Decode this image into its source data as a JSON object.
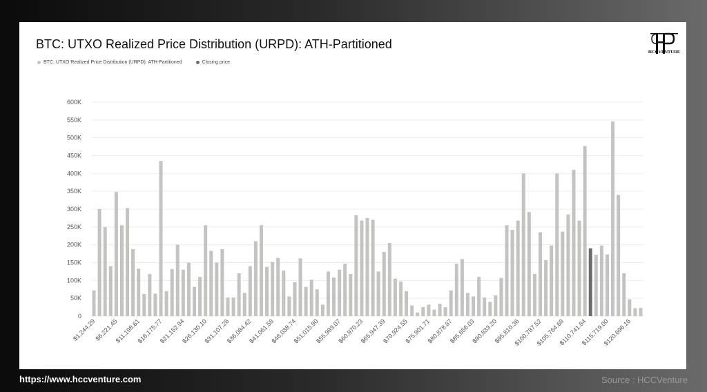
{
  "footer": {
    "url": "https://www.hccventure.com",
    "source": "Source : HCCVenture"
  },
  "logo": {
    "text": "HCCVENTURE"
  },
  "colors": {
    "bar": "#c3c3c1",
    "closing": "#6c6c6c",
    "grid": "#ececec",
    "axis_text": "#555555"
  },
  "chart_data": {
    "type": "bar",
    "title": "BTC: UTXO Realized Price Distribution (URPD): ATH-Partitioned",
    "legend": [
      {
        "name": "BTC: UTXO Realized Price Distribution (URPD): ATH-Partitioned",
        "color": "#c3c3c1"
      },
      {
        "name": "Closing price",
        "color": "#6c6c6c"
      }
    ],
    "legend_position": "top-left",
    "xlabel": "",
    "ylabel": "",
    "ylim": [
      0,
      600000
    ],
    "yticks": [
      "0",
      "50K",
      "100K",
      "150K",
      "200K",
      "250K",
      "300K",
      "350K",
      "400K",
      "450K",
      "500K",
      "550K",
      "600K"
    ],
    "grid": true,
    "xtick_labels": [
      "$1,244.29",
      "$6,221.45",
      "$11,198.61",
      "$16,175.77",
      "$21,152.94",
      "$26,130.10",
      "$31,107.26",
      "$36,084.42",
      "$41,061.58",
      "$46,038.74",
      "$51,015.90",
      "$55,993.07",
      "$60,970.23",
      "$65,947.39",
      "$70,924.55",
      "$75,901.71",
      "$80,878.87",
      "$85,856.03",
      "$90,833.20",
      "$95,810.36",
      "$100,787.52",
      "$105,764.68",
      "$110,741.84",
      "$115,719.00",
      "$120,696.16"
    ],
    "xtick_every": 4,
    "closing_price_index": 89,
    "values": [
      72000,
      300000,
      250000,
      140000,
      348000,
      255000,
      303000,
      188000,
      133000,
      62000,
      118000,
      63000,
      435000,
      70000,
      132000,
      200000,
      130000,
      150000,
      82000,
      110000,
      255000,
      183000,
      150000,
      188000,
      52000,
      52000,
      120000,
      65000,
      140000,
      210000,
      255000,
      138000,
      152000,
      163000,
      128000,
      55000,
      95000,
      162000,
      82000,
      102000,
      75000,
      32000,
      125000,
      108000,
      130000,
      147000,
      118000,
      283000,
      268000,
      275000,
      270000,
      125000,
      180000,
      205000,
      105000,
      97000,
      70000,
      30000,
      10000,
      25000,
      32000,
      18000,
      35000,
      25000,
      72000,
      147000,
      160000,
      65000,
      55000,
      110000,
      52000,
      40000,
      58000,
      107000,
      255000,
      242000,
      268000,
      400000,
      292000,
      118000,
      235000,
      157000,
      198000,
      400000,
      237000,
      285000,
      410000,
      268000,
      477000,
      190000,
      172000,
      198000,
      173000,
      546000,
      340000,
      120000,
      47000,
      22000,
      23000
    ]
  }
}
